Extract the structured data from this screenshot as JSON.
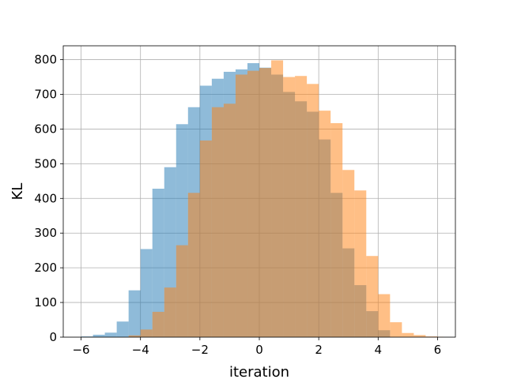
{
  "chart_data": {
    "type": "bar",
    "xlabel": "iteration",
    "ylabel": "KL",
    "xlim": [
      -6.6,
      6.6
    ],
    "ylim": [
      0,
      840
    ],
    "grid": true,
    "x_ticks": [
      -6,
      -4,
      -2,
      0,
      2,
      4,
      6
    ],
    "y_ticks": [
      0,
      100,
      200,
      300,
      400,
      500,
      600,
      700,
      800
    ],
    "series": [
      {
        "color": "#1f77b4",
        "opacity": 0.5,
        "bin_edges": [
          -6.0,
          -5.6,
          -5.2,
          -4.8,
          -4.4,
          -4.0,
          -3.6,
          -3.2,
          -2.8,
          -2.4,
          -2.0,
          -1.6,
          -1.2,
          -0.8,
          -0.4,
          0.0,
          0.4,
          0.8,
          1.2,
          1.6,
          2.0,
          2.4,
          2.8,
          3.2,
          3.6,
          4.0,
          4.4
        ],
        "counts": [
          2,
          7,
          13,
          45,
          135,
          254,
          428,
          490,
          614,
          663,
          725,
          745,
          765,
          772,
          790,
          777,
          757,
          707,
          680,
          650,
          570,
          416,
          256,
          150,
          75,
          20
        ]
      },
      {
        "color": "#ff7f0e",
        "opacity": 0.5,
        "bin_edges": [
          -4.4,
          -4.0,
          -3.6,
          -3.2,
          -2.8,
          -2.4,
          -2.0,
          -1.6,
          -1.2,
          -0.8,
          -0.4,
          0.0,
          0.4,
          0.8,
          1.2,
          1.6,
          2.0,
          2.4,
          2.8,
          3.2,
          3.6,
          4.0,
          4.4,
          4.8,
          5.2,
          5.6,
          6.0,
          6.2
        ],
        "counts": [
          5,
          22,
          73,
          143,
          265,
          416,
          567,
          663,
          673,
          757,
          768,
          776,
          798,
          750,
          753,
          730,
          653,
          617,
          482,
          423,
          234,
          124,
          43,
          12,
          6,
          2,
          1
        ]
      }
    ]
  }
}
